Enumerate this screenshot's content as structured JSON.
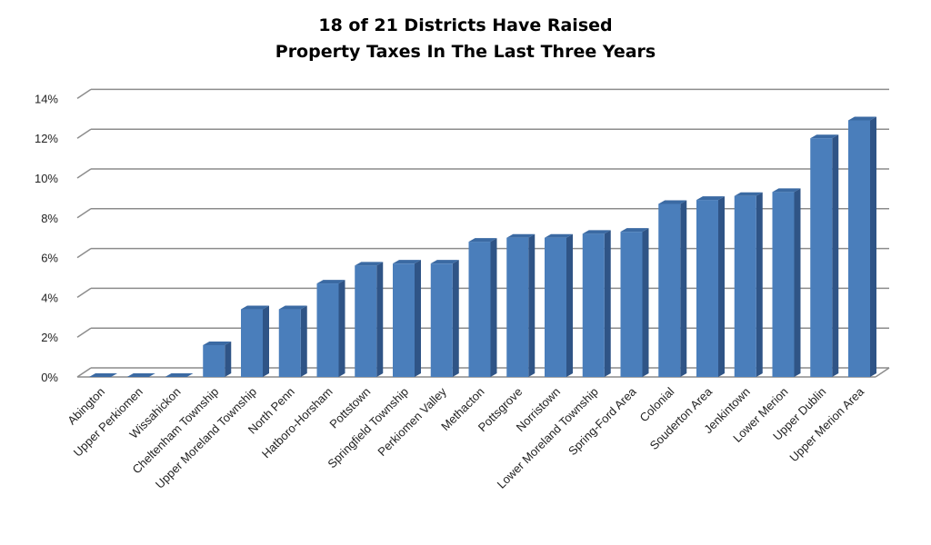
{
  "chart_data": {
    "type": "bar",
    "title": [
      "18 of 21 Districts Have Raised",
      "Property Taxes In The Last Three Years"
    ],
    "xlabel": "",
    "ylabel": "",
    "ylim": [
      0,
      14
    ],
    "yticks": [
      "0%",
      "2%",
      "4%",
      "6%",
      "8%",
      "10%",
      "12%",
      "14%"
    ],
    "grid": true,
    "legend": "none",
    "categories": [
      "Abington",
      "Upper Perkiomen",
      "Wissahickon",
      "Cheltenham Township",
      "Upper Moreland Township",
      "North Penn",
      "Hatboro-Horsham",
      "Pottstown",
      "Springfield Township",
      "Perkiomen Valley",
      "Methacton",
      "Pottsgrove",
      "Norristown",
      "Lower Moreland Township",
      "Spring-Ford Area",
      "Colonial",
      "Souderton Area",
      "Jenkintown",
      "Lower Merion",
      "Upper Dublin",
      "Upper Merion Area"
    ],
    "values": [
      0,
      0,
      0,
      1.6,
      3.4,
      3.4,
      4.7,
      5.6,
      5.7,
      5.7,
      6.8,
      7.0,
      7.0,
      7.2,
      7.3,
      8.7,
      8.9,
      9.1,
      9.3,
      12.0,
      12.9
    ],
    "colors": {
      "front": "#4a7ebb",
      "side": "#2f5486",
      "top": "#3b6aa3",
      "grid": "#8c8c8c"
    }
  }
}
